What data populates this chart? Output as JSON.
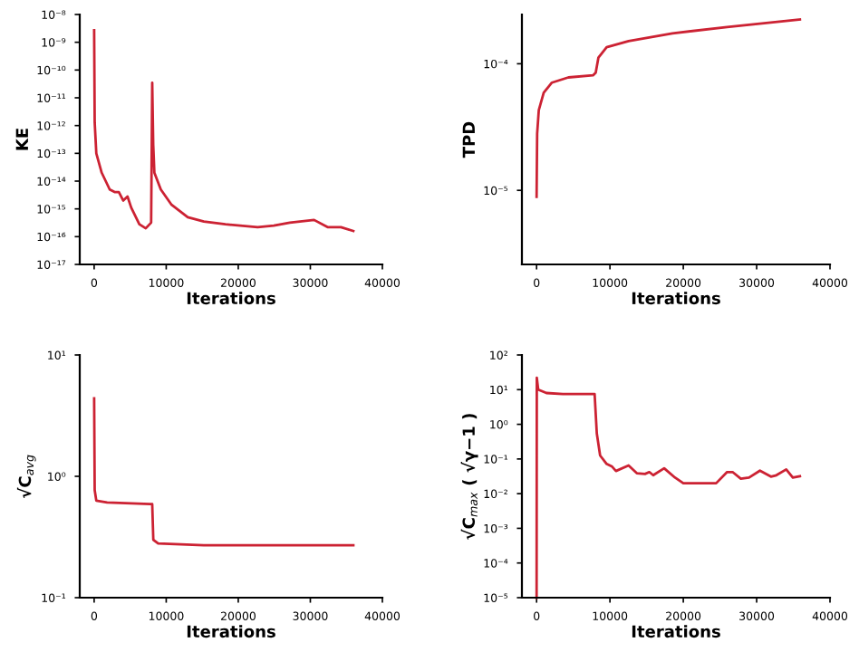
{
  "chart_data": [
    {
      "type": "line",
      "xlabel": "Iterations",
      "ylabel": "KE",
      "log": "y",
      "grid": false,
      "legend": false,
      "xlim": [
        -2000,
        40000
      ],
      "xticks": [
        0,
        10000,
        20000,
        30000,
        40000
      ],
      "ylim": [
        1e-17,
        1e-08
      ],
      "yticks": [
        {
          "value": 1e-17,
          "label": "10⁻¹⁷"
        },
        {
          "value": 1e-16,
          "label": "10⁻¹⁶"
        },
        {
          "value": 1e-15,
          "label": "10⁻¹⁵"
        },
        {
          "value": 1e-14,
          "label": "10⁻¹⁴"
        },
        {
          "value": 1e-13,
          "label": "10⁻¹³"
        },
        {
          "value": 1e-12,
          "label": "10⁻¹²"
        },
        {
          "value": 1e-11,
          "label": "10⁻¹¹"
        },
        {
          "value": 1e-10,
          "label": "10⁻¹⁰"
        },
        {
          "value": 1e-09,
          "label": "10⁻⁹"
        },
        {
          "value": 1e-08,
          "label": "10⁻⁸"
        }
      ],
      "series": [
        {
          "color": "#cc2233",
          "x": [
            0,
            75,
            300,
            1050,
            2160,
            2900,
            3430,
            4030,
            4630,
            5150,
            6270,
            7160,
            7910,
            8060,
            8200,
            8360,
            9250,
            10750,
            12990,
            15220,
            18210,
            22690,
            24930,
            27160,
            30520,
            32390,
            34250,
            35970
          ],
          "values": [
            2.7e-09,
            1.3e-12,
            1e-13,
            2e-14,
            5e-15,
            4e-15,
            4e-15,
            2e-15,
            2.8e-15,
            1.1e-15,
            2.8e-16,
            2e-16,
            3.2e-16,
            3.5e-11,
            2e-13,
            2e-14,
            5e-15,
            1.4e-15,
            5e-16,
            3.5e-16,
            2.8e-16,
            2.2e-16,
            2.5e-16,
            3.2e-16,
            4e-16,
            2.2e-16,
            2.2e-16,
            1.6e-16
          ]
        }
      ]
    },
    {
      "type": "line",
      "xlabel": "Iterations",
      "ylabel": "TPD",
      "log": "y",
      "grid": false,
      "legend": false,
      "xlim": [
        -2000,
        40000
      ],
      "xticks": [
        0,
        10000,
        20000,
        30000,
        40000
      ],
      "ylim": [
        2.6e-06,
        0.000245
      ],
      "yticks": [
        {
          "value": 1e-05,
          "label": "10⁻⁵"
        },
        {
          "value": 0.0001,
          "label": "10⁻⁴"
        }
      ],
      "series": [
        {
          "color": "#cc2233",
          "x": [
            0,
            75,
            300,
            970,
            2090,
            4330,
            7690,
            8060,
            8430,
            9550,
            12540,
            18510,
            25970,
            35900
          ],
          "values": [
            8.9e-06,
            2.8e-05,
            4.3e-05,
            5.9e-05,
            7.1e-05,
            7.8e-05,
            8.1e-05,
            8.5e-05,
            0.000112,
            0.000135,
            0.000151,
            0.000174,
            0.000195,
            0.000224
          ]
        }
      ]
    },
    {
      "type": "line",
      "xlabel": "Iterations",
      "ylabel": "√C$_{avg}$",
      "log": "y",
      "grid": false,
      "legend": false,
      "xlim": [
        -2000,
        40000
      ],
      "xticks": [
        0,
        10000,
        20000,
        30000,
        40000
      ],
      "ylim": [
        0.1,
        10
      ],
      "yticks": [
        {
          "value": 0.1,
          "label": "10⁻¹"
        },
        {
          "value": 1,
          "label": "10⁰"
        },
        {
          "value": 10,
          "label": "10¹"
        }
      ],
      "series": [
        {
          "color": "#cc2233",
          "x": [
            0,
            75,
            300,
            1800,
            7760,
            8060,
            8210,
            8880,
            15220,
            35970
          ],
          "values": [
            4.4,
            0.77,
            0.63,
            0.61,
            0.59,
            0.59,
            0.3,
            0.28,
            0.27,
            0.27
          ]
        }
      ]
    },
    {
      "type": "line",
      "xlabel": "Iterations",
      "ylabel": "√C$_{max}$ ( √γ−1 )",
      "log": "y",
      "grid": false,
      "legend": false,
      "xlim": [
        -2000,
        40000
      ],
      "xticks": [
        0,
        10000,
        20000,
        30000,
        40000
      ],
      "ylim": [
        1e-05,
        100
      ],
      "yticks": [
        {
          "value": 1e-05,
          "label": "10⁻⁵"
        },
        {
          "value": 0.0001,
          "label": "10⁻⁴"
        },
        {
          "value": 0.001,
          "label": "10⁻³"
        },
        {
          "value": 0.01,
          "label": "10⁻²"
        },
        {
          "value": 0.1,
          "label": "10⁻¹"
        },
        {
          "value": 1,
          "label": "10⁰"
        },
        {
          "value": 10,
          "label": "10¹"
        },
        {
          "value": 100,
          "label": "10²"
        }
      ],
      "series": [
        {
          "color": "#cc2233",
          "x": [
            0,
            30,
            220,
            1340,
            3580,
            7910,
            8210,
            8660,
            9550,
            10300,
            10820,
            12540,
            13660,
            14780,
            15370,
            15900,
            17390,
            18880,
            20000,
            22240,
            24480,
            25970,
            26720,
            27840,
            28960,
            30450,
            31940,
            32690,
            34030,
            34930,
            35900
          ],
          "values": [
            1e-05,
            22,
            10,
            8,
            7.5,
            7.5,
            0.54,
            0.126,
            0.072,
            0.06,
            0.045,
            0.065,
            0.039,
            0.037,
            0.042,
            0.034,
            0.054,
            0.029,
            0.02,
            0.02,
            0.02,
            0.042,
            0.042,
            0.027,
            0.029,
            0.046,
            0.031,
            0.034,
            0.05,
            0.029,
            0.032
          ]
        }
      ]
    }
  ]
}
